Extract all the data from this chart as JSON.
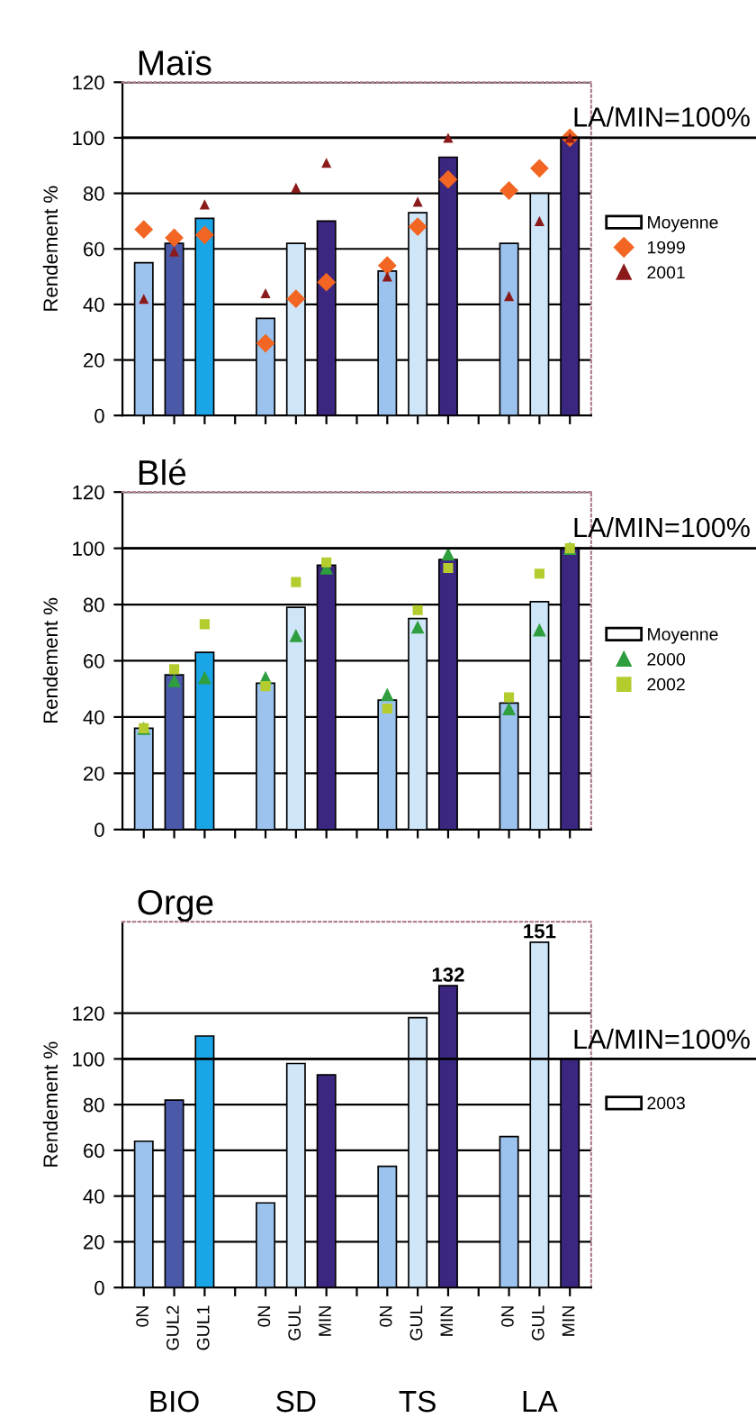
{
  "chart_data": [
    {
      "type": "bar",
      "title": "Maïs",
      "ylabel": "Rendement %",
      "categories": [
        null,
        null,
        null,
        null,
        null,
        null,
        null,
        null,
        null,
        null,
        null,
        null,
        null,
        null,
        null
      ],
      "tick_labels": "y",
      "ylim": [
        0,
        120
      ],
      "yticks": [
        0,
        20,
        40,
        60,
        80,
        100,
        120
      ],
      "grid": "y",
      "legend": "right",
      "ref_lines": [
        {
          "axis": "y",
          "value": 100,
          "label": "LA/MIN=100%",
          "color": "#000000"
        }
      ],
      "series": [
        {
          "name": "Moyenne",
          "values": [
            55,
            62,
            71,
            null,
            35,
            62,
            70,
            null,
            52,
            73,
            93,
            null,
            62,
            80,
            100
          ],
          "colors": [
            "#9cc3ee",
            "#4a5aa8",
            "#1aa6e6",
            "#ffffff",
            "#9cc3ee",
            "#cfe6f8",
            "#3b2680",
            "#ffffff",
            "#9cc3ee",
            "#cfe6f8",
            "#3b2680",
            "#ffffff",
            "#9cc3ee",
            "#cfe6f8",
            "#3b2680"
          ]
        },
        {
          "name": "1999",
          "type": "scatter",
          "marker": "diamond",
          "color": "#f26522",
          "values": [
            67,
            64,
            65,
            null,
            26,
            42,
            48,
            null,
            54,
            68,
            85,
            null,
            81,
            89,
            100
          ]
        },
        {
          "name": "2001",
          "type": "scatter",
          "marker": "triangle",
          "color": "#8b1a1a",
          "values": [
            42,
            59,
            76,
            null,
            44,
            82,
            91,
            null,
            50,
            77,
            100,
            null,
            43,
            70,
            100
          ]
        }
      ]
    },
    {
      "type": "bar",
      "title": "Blé",
      "ylabel": "Rendement %",
      "categories": [
        null,
        null,
        null,
        null,
        null,
        null,
        null,
        null,
        null,
        null,
        null,
        null,
        null,
        null,
        null
      ],
      "tick_labels": "y",
      "ylim": [
        0,
        120
      ],
      "yticks": [
        0,
        20,
        40,
        60,
        80,
        100,
        120
      ],
      "grid": "y",
      "legend": "right",
      "ref_lines": [
        {
          "axis": "y",
          "value": 100,
          "label": "LA/MIN=100%",
          "color": "#000000"
        }
      ],
      "series": [
        {
          "name": "Moyenne",
          "values": [
            36,
            55,
            63,
            null,
            52,
            79,
            94,
            null,
            46,
            75,
            96,
            null,
            45,
            81,
            100
          ],
          "colors": [
            "#9cc3ee",
            "#4a5aa8",
            "#1aa6e6",
            "#ffffff",
            "#9cc3ee",
            "#cfe6f8",
            "#3b2680",
            "#ffffff",
            "#9cc3ee",
            "#cfe6f8",
            "#3b2680",
            "#ffffff",
            "#9cc3ee",
            "#cfe6f8",
            "#3b2680"
          ]
        },
        {
          "name": "2000",
          "type": "scatter",
          "marker": "triangle",
          "color": "#2e9e3e",
          "values": [
            36,
            53,
            54,
            null,
            54,
            69,
            93,
            null,
            48,
            72,
            98,
            null,
            43,
            71,
            100
          ]
        },
        {
          "name": "2002",
          "type": "scatter",
          "marker": "square",
          "color": "#b5cc2e",
          "values": [
            36,
            57,
            73,
            null,
            51,
            88,
            95,
            null,
            43,
            78,
            93,
            null,
            47,
            91,
            100
          ]
        }
      ]
    },
    {
      "type": "bar",
      "title": "Orge",
      "ylabel": "Rendement %",
      "categories": [
        "0N",
        "GUL2",
        "GUL1",
        null,
        "0N",
        "GUL",
        "MIN",
        null,
        "0N",
        "GUL",
        "MIN",
        null,
        "0N",
        "GUL",
        "MIN"
      ],
      "ylim": [
        0,
        160
      ],
      "yticks": [
        0,
        20,
        40,
        60,
        80,
        100,
        120
      ],
      "grid": "y",
      "legend": "right",
      "ref_lines": [
        {
          "axis": "y",
          "value": 100,
          "label": "LA/MIN=100%",
          "color": "#000000"
        }
      ],
      "annotations": [
        "BIO",
        "SD",
        "TS",
        "LA"
      ],
      "series": [
        {
          "name": "2003",
          "values": [
            64,
            82,
            110,
            null,
            37,
            98,
            93,
            null,
            53,
            118,
            132,
            null,
            66,
            151,
            100
          ],
          "value_labels": [
            null,
            null,
            null,
            null,
            null,
            null,
            null,
            null,
            null,
            null,
            "132",
            null,
            null,
            "151",
            null
          ],
          "colors": [
            "#9cc3ee",
            "#4a5aa8",
            "#1aa6e6",
            "#ffffff",
            "#9cc3ee",
            "#cfe6f8",
            "#3b2680",
            "#ffffff",
            "#9cc3ee",
            "#cfe6f8",
            "#3b2680",
            "#ffffff",
            "#9cc3ee",
            "#cfe6f8",
            "#3b2680"
          ]
        }
      ]
    }
  ]
}
